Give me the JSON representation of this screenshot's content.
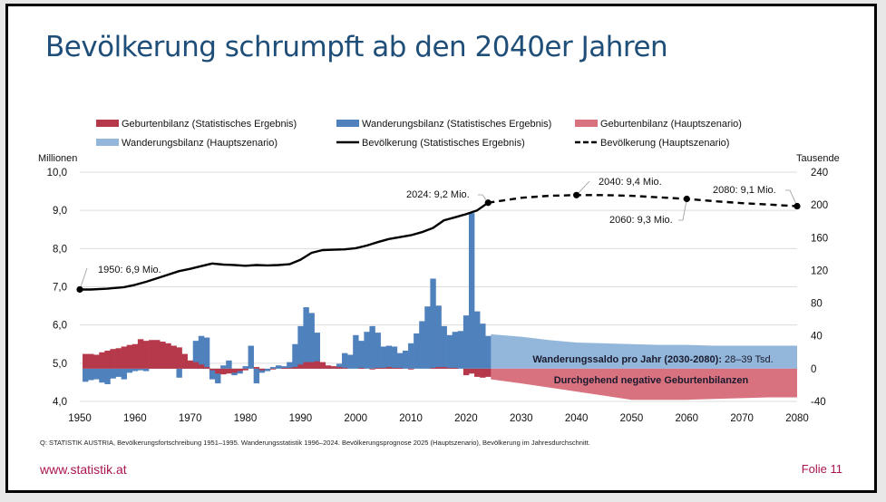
{
  "slide": {
    "title": "Bevölkerung schrumpft ab den 2040er Jahren",
    "source": "Q: STATISTIK AUSTRIA, Bevölkerungsfortschreibung 1951–1995. Wanderungsstatistik 1996–2024. Bevölkerungsprognose 2025 (Hauptszenario), Bevölkerung im Jahresdurchschnitt.",
    "url": "www.statistik.at",
    "page": "Folie 11"
  },
  "colors": {
    "title": "#1f4e79",
    "geburten_hist": "#b5394a",
    "wanderung_hist": "#4f81bd",
    "geburten_proj": "#d9727f",
    "wanderung_proj": "#93b7da",
    "line": "#000000",
    "accent": "#a8154f"
  },
  "chart_data": {
    "type": "bar+line",
    "title": "",
    "xlabel": "",
    "ylabel_left": "Millionen",
    "ylabel_right": "Tausende",
    "xlim": [
      1950,
      2080
    ],
    "ylim_left": [
      4.0,
      10.0
    ],
    "ylim_right": [
      -40,
      240
    ],
    "x_ticks": [
      "1950",
      "1960",
      "1970",
      "1980",
      "1990",
      "2000",
      "2010",
      "2020",
      "2030",
      "2040",
      "2050",
      "2060",
      "2070",
      "2080"
    ],
    "y_ticks_left": [
      "10,0",
      "9,0",
      "8,0",
      "7,0",
      "6,0",
      "5,0",
      "4,0"
    ],
    "y_ticks_right": [
      "240",
      "200",
      "160",
      "120",
      "80",
      "40",
      "0",
      "-40"
    ],
    "grid": true,
    "legend": [
      {
        "label": "Geburtenbilanz (Statistisches Ergebnis)",
        "kind": "bar",
        "color": "#b5394a"
      },
      {
        "label": "Wanderungsbilanz (Statistisches Ergebnis)",
        "kind": "bar",
        "color": "#4f81bd"
      },
      {
        "label": "Geburtenbilanz (Hauptszenario)",
        "kind": "bar",
        "color": "#d9727f"
      },
      {
        "label": "Wanderungsbilanz (Hauptszenario)",
        "kind": "bar",
        "color": "#93b7da"
      },
      {
        "label": "Bevölkerung (Statistisches Ergebnis)",
        "kind": "line",
        "color": "#000000"
      },
      {
        "label": "Bevölkerung (Hauptszenario)",
        "kind": "dashed",
        "color": "#000000"
      }
    ],
    "legend_position": "top",
    "series": [
      {
        "name": "Geburtenbilanz (Statistisches Ergebnis)",
        "axis": "right",
        "unit": "Tausend",
        "years": [
          1951,
          1952,
          1953,
          1954,
          1955,
          1956,
          1957,
          1958,
          1959,
          1960,
          1961,
          1962,
          1963,
          1964,
          1965,
          1966,
          1967,
          1968,
          1969,
          1970,
          1971,
          1972,
          1973,
          1974,
          1975,
          1976,
          1977,
          1978,
          1979,
          1980,
          1981,
          1982,
          1983,
          1984,
          1985,
          1986,
          1987,
          1988,
          1989,
          1990,
          1991,
          1992,
          1993,
          1994,
          1995,
          1996,
          1997,
          1998,
          1999,
          2000,
          2001,
          2002,
          2003,
          2004,
          2005,
          2006,
          2007,
          2008,
          2009,
          2010,
          2011,
          2012,
          2013,
          2014,
          2015,
          2016,
          2017,
          2018,
          2019,
          2020,
          2021,
          2022,
          2023,
          2024
        ],
        "values": [
          18,
          18,
          17,
          20,
          22,
          24,
          25,
          27,
          29,
          30,
          36,
          34,
          35,
          35,
          33,
          31,
          28,
          26,
          18,
          10,
          8,
          5,
          2,
          -2,
          -6,
          -7,
          -6,
          -5,
          -3,
          -2,
          0,
          2,
          -2,
          0,
          -1,
          0,
          1,
          1,
          2,
          5,
          8,
          8,
          9,
          8,
          4,
          3,
          2,
          1,
          0,
          0,
          1,
          0,
          -1,
          1,
          1,
          2,
          1,
          1,
          0,
          -1,
          0,
          0,
          0,
          1,
          2,
          2,
          1,
          1,
          0,
          -8,
          -6,
          -10,
          -11,
          -10
        ]
      },
      {
        "name": "Wanderungsbilanz (Statistisches Ergebnis)",
        "axis": "right",
        "unit": "Tausend",
        "years": [
          1951,
          1952,
          1953,
          1954,
          1955,
          1956,
          1957,
          1958,
          1959,
          1960,
          1961,
          1962,
          1963,
          1964,
          1965,
          1966,
          1967,
          1968,
          1969,
          1970,
          1971,
          1972,
          1973,
          1974,
          1975,
          1976,
          1977,
          1978,
          1979,
          1980,
          1981,
          1982,
          1983,
          1984,
          1985,
          1986,
          1987,
          1988,
          1989,
          1990,
          1991,
          1992,
          1993,
          1994,
          1995,
          1996,
          1997,
          1998,
          1999,
          2000,
          2001,
          2002,
          2003,
          2004,
          2005,
          2006,
          2007,
          2008,
          2009,
          2010,
          2011,
          2012,
          2013,
          2014,
          2015,
          2016,
          2017,
          2018,
          2019,
          2020,
          2021,
          2022,
          2023,
          2024
        ],
        "values": [
          -16,
          -14,
          -13,
          -17,
          -19,
          -12,
          -10,
          -13,
          -5,
          -3,
          -2,
          -3,
          2,
          5,
          11,
          22,
          28,
          -11,
          3,
          6,
          34,
          40,
          38,
          -13,
          -18,
          4,
          10,
          -8,
          -6,
          3,
          28,
          -18,
          -5,
          -3,
          2,
          4,
          3,
          8,
          30,
          52,
          75,
          68,
          44,
          3,
          2,
          1,
          6,
          19,
          17,
          41,
          34,
          45,
          52,
          44,
          27,
          28,
          27,
          19,
          22,
          31,
          43,
          58,
          76,
          110,
          77,
          52,
          41,
          45,
          46,
          65,
          190,
          70,
          55,
          40
        ]
      },
      {
        "name": "Wanderungsbilanz (Hauptszenario)",
        "axis": "right",
        "unit": "Tausend",
        "years": [
          2025,
          2030,
          2035,
          2040,
          2045,
          2050,
          2055,
          2060,
          2065,
          2070,
          2075,
          2080
        ],
        "values": [
          42,
          39,
          35,
          32,
          31,
          30,
          29,
          29,
          28,
          28,
          28,
          28
        ]
      },
      {
        "name": "Geburtenbilanz (Hauptszenario)",
        "axis": "right",
        "unit": "Tausend",
        "years": [
          2025,
          2030,
          2035,
          2040,
          2045,
          2050,
          2055,
          2060,
          2065,
          2070,
          2075,
          2080
        ],
        "values": [
          -13,
          -18,
          -23,
          -28,
          -33,
          -38,
          -38,
          -38,
          -37,
          -36,
          -35,
          -35
        ]
      },
      {
        "name": "Bevölkerung (Statistisches Ergebnis)",
        "axis": "left",
        "unit": "Mio.",
        "years": [
          1950,
          1952,
          1955,
          1958,
          1960,
          1962,
          1965,
          1968,
          1970,
          1972,
          1974,
          1976,
          1978,
          1980,
          1982,
          1984,
          1986,
          1988,
          1990,
          1992,
          1994,
          1996,
          1998,
          2000,
          2002,
          2004,
          2006,
          2008,
          2010,
          2012,
          2014,
          2016,
          2018,
          2020,
          2022,
          2024
        ],
        "values": [
          6.93,
          6.93,
          6.95,
          6.99,
          7.05,
          7.13,
          7.27,
          7.41,
          7.47,
          7.54,
          7.61,
          7.58,
          7.57,
          7.55,
          7.57,
          7.56,
          7.57,
          7.59,
          7.71,
          7.89,
          7.96,
          7.97,
          7.98,
          8.01,
          8.08,
          8.17,
          8.25,
          8.3,
          8.35,
          8.43,
          8.54,
          8.74,
          8.82,
          8.9,
          9.0,
          9.2
        ]
      },
      {
        "name": "Bevölkerung (Hauptszenario)",
        "axis": "left",
        "unit": "Mio.",
        "years": [
          2024,
          2030,
          2035,
          2040,
          2045,
          2050,
          2055,
          2060,
          2065,
          2070,
          2075,
          2080
        ],
        "values": [
          9.2,
          9.33,
          9.38,
          9.4,
          9.4,
          9.38,
          9.34,
          9.3,
          9.24,
          9.19,
          9.15,
          9.11
        ]
      }
    ],
    "annotations": [
      {
        "text": "1950: 6,9 Mio.",
        "year": 1950,
        "value": 6.93
      },
      {
        "text": "2024: 9,2 Mio.",
        "year": 2024,
        "value": 9.2
      },
      {
        "text": "2040: 9,4 Mio.",
        "year": 2040,
        "value": 9.4
      },
      {
        "text": "2060: 9,3 Mio.",
        "year": 2060,
        "value": 9.3
      },
      {
        "text": "2080: 9,1 Mio.",
        "year": 2080,
        "value": 9.11
      }
    ],
    "area_labels": [
      {
        "text_bold": "Wanderungssaldo pro Jahr (2030-2080):",
        "text": " 28–39 Tsd."
      },
      {
        "text_bold": "Durchgehend negative Geburtenbilanzen",
        "text": ""
      }
    ]
  }
}
